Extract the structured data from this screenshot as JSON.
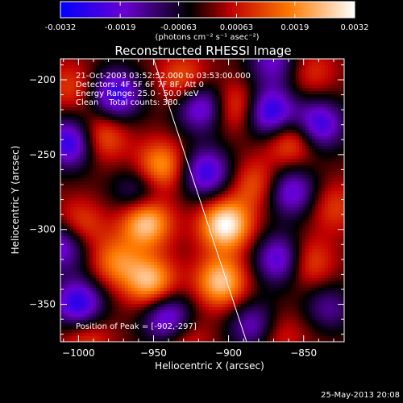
{
  "colorbar": {
    "tick_labels": [
      "-0.0032",
      "-0.0019",
      "-0.00063",
      "0.00063",
      "0.0019",
      "0.0032"
    ],
    "tick_values": [
      -0.0032,
      -0.0019,
      -0.00063,
      0.00063,
      0.0019,
      0.0032
    ],
    "range": [
      -0.0032,
      0.0032
    ],
    "unit_label": "(photons cm⁻² s⁻¹ asec⁻²)",
    "colors": [
      "#0000ff",
      "#6a00d0",
      "#000000",
      "#c00000",
      "#ff7a00",
      "#ffffff"
    ]
  },
  "plot": {
    "title": "Reconstructed RHESSI Image",
    "info_lines": [
      "21-Oct-2003 03:52:52.000 to 03:53:00.000",
      "Detectors: 4F 5F 6F 7F 8F, Att 0",
      "Energy Range: 25.0 - 50.0 keV",
      "Clean    Total counts: 380."
    ],
    "peak_label": "Position of Peak = [-902,-297]",
    "xlabel": "Heliocentric X (arcsec)",
    "ylabel": "Heliocentric Y (arcsec)",
    "x_ticks": [
      -1000,
      -950,
      -900,
      -850
    ],
    "y_ticks": [
      -200,
      -250,
      -300,
      -350
    ],
    "xlim": [
      -1012,
      -823
    ],
    "ylim": [
      -375,
      -186
    ],
    "limb_line": [
      [
        -950,
        -186
      ],
      [
        -888,
        -375
      ]
    ]
  },
  "footer": {
    "timestamp": "25-May-2013 20:08"
  },
  "chart_data": {
    "type": "heatmap",
    "title": "Reconstructed RHESSI Image",
    "xlabel": "Heliocentric X (arcsec)",
    "ylabel": "Heliocentric Y (arcsec)",
    "xlim": [
      -1012,
      -823
    ],
    "ylim": [
      -375,
      -186
    ],
    "value_range": [
      -0.0032,
      0.0032
    ],
    "peak": [
      -902,
      -297
    ],
    "bright_sources": [
      {
        "x": -955,
        "y": -295,
        "value": 0.0028
      },
      {
        "x": -902,
        "y": -297,
        "value": 0.0032
      },
      {
        "x": -905,
        "y": -335,
        "value": 0.0026
      },
      {
        "x": -952,
        "y": -335,
        "value": 0.0025
      },
      {
        "x": -945,
        "y": -258,
        "value": 0.0022
      },
      {
        "x": -985,
        "y": -238,
        "value": 0.0017
      },
      {
        "x": -1000,
        "y": -298,
        "value": 0.0016
      },
      {
        "x": -975,
        "y": -322,
        "value": 0.0017
      },
      {
        "x": -930,
        "y": -200,
        "value": 0.0015
      },
      {
        "x": -895,
        "y": -218,
        "value": 0.0016
      },
      {
        "x": -882,
        "y": -270,
        "value": 0.0014
      },
      {
        "x": -858,
        "y": -240,
        "value": 0.0018
      },
      {
        "x": -848,
        "y": -322,
        "value": 0.0016
      },
      {
        "x": -870,
        "y": -370,
        "value": 0.0013
      },
      {
        "x": -930,
        "y": -372,
        "value": 0.0012
      },
      {
        "x": -995,
        "y": -372,
        "value": 0.0012
      },
      {
        "x": -1005,
        "y": -205,
        "value": 0.0011
      },
      {
        "x": -845,
        "y": -195,
        "value": 0.001
      },
      {
        "x": -830,
        "y": -285,
        "value": 0.0011
      },
      {
        "x": -838,
        "y": -360,
        "value": 0.001
      }
    ],
    "dark_sources": [
      {
        "x": -1005,
        "y": -242,
        "value": -0.0028
      },
      {
        "x": -975,
        "y": -210,
        "value": -0.0026
      },
      {
        "x": -918,
        "y": -218,
        "value": -0.0024
      },
      {
        "x": -915,
        "y": -262,
        "value": -0.0025
      },
      {
        "x": -872,
        "y": -222,
        "value": -0.0029
      },
      {
        "x": -840,
        "y": -230,
        "value": -0.0026
      },
      {
        "x": -858,
        "y": -275,
        "value": -0.0022
      },
      {
        "x": -1010,
        "y": -310,
        "value": -0.0024
      },
      {
        "x": -1000,
        "y": -350,
        "value": -0.0028
      },
      {
        "x": -940,
        "y": -360,
        "value": -0.0026
      },
      {
        "x": -882,
        "y": -365,
        "value": -0.0022
      },
      {
        "x": -865,
        "y": -320,
        "value": -0.0025
      },
      {
        "x": -835,
        "y": -355,
        "value": -0.0022
      },
      {
        "x": -960,
        "y": -275,
        "value": -0.0015
      },
      {
        "x": -870,
        "y": -188,
        "value": -0.0018
      }
    ]
  }
}
